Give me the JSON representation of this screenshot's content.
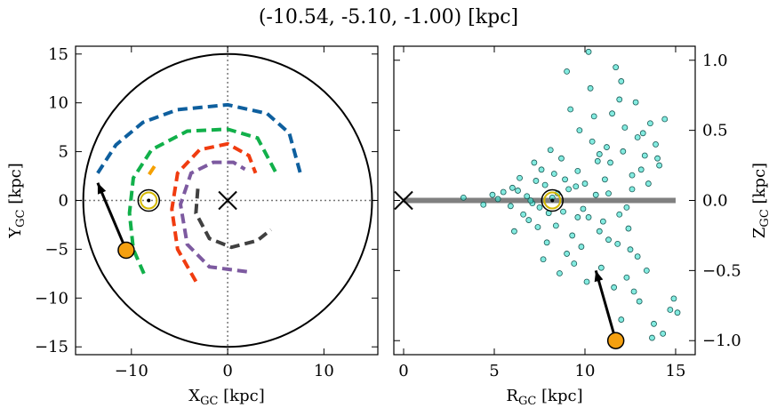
{
  "title": "(-10.54, -5.10, -1.00) [kpc]",
  "chart_data": [
    {
      "type": "line",
      "x_label": {
        "main": "X",
        "sub": "GC",
        "unit": " [kpc]"
      },
      "y_label": {
        "main": "Y",
        "sub": "GC",
        "unit": " [kpc]"
      },
      "xlim": [
        -15.8,
        15.6
      ],
      "ylim": [
        -15.8,
        15.8
      ],
      "xticks": [
        {
          "value": -10,
          "label": "−10"
        },
        0,
        10
      ],
      "yticks": [
        {
          "value": -15,
          "label": "−15"
        },
        {
          "value": -10,
          "label": "−10"
        },
        {
          "value": -5,
          "label": "−5"
        },
        0,
        5,
        10,
        15
      ],
      "boundary_radius": 15,
      "series": [
        {
          "color": "#0e5f9e",
          "x": [
            -13.5,
            -11.6,
            -8.8,
            -5.2,
            0,
            4.1,
            6.4,
            7.6
          ],
          "y": [
            2.8,
            5.7,
            8.0,
            9.3,
            9.8,
            8.9,
            6.9,
            2.6
          ]
        },
        {
          "color": "#11b04a",
          "x": [
            -8.7,
            -9.8,
            -10.2,
            -9.8,
            -7.9,
            -4.2,
            0,
            3.1,
            5.2
          ],
          "y": [
            -7.5,
            -5.0,
            -1.3,
            2.3,
            5.2,
            7.1,
            7.3,
            6.4,
            2.5
          ]
        },
        {
          "color": "#f03c10",
          "x": [
            -3.3,
            -5.2,
            -5.8,
            -5.2,
            -2.9,
            0,
            2.2,
            2.9
          ],
          "y": [
            -8.3,
            -5.0,
            -0.9,
            2.8,
            5.2,
            5.8,
            4.6,
            2.8
          ]
        },
        {
          "color": "#7d5aa0",
          "x": [
            2.0,
            -1.9,
            -4.2,
            -4.9,
            -3.8,
            -1.5,
            0.6,
            1.8
          ],
          "y": [
            -7.3,
            -6.8,
            -4.5,
            -0.4,
            2.8,
            3.9,
            3.9,
            3.2
          ]
        },
        {
          "color": "#404040",
          "x": [
            -3.1,
            -3.3,
            -1.9,
            0.4,
            3.1,
            4.5
          ],
          "y": [
            1.2,
            -1.3,
            -3.9,
            -4.8,
            -4.1,
            -3.0
          ]
        },
        {
          "color": "#f5a000",
          "x": [
            -7.6,
            -8.4
          ],
          "y": [
            3.5,
            2.3
          ]
        }
      ],
      "sun": {
        "x": -8.2,
        "y": 0
      },
      "center": {
        "x": 0,
        "y": 0
      },
      "star": {
        "x": -10.54,
        "y": -5.1,
        "color": "#f5a010"
      },
      "arrow_to": {
        "x": -13.5,
        "y": 1.8
      }
    },
    {
      "type": "scatter",
      "x_label": {
        "main": "R",
        "sub": "GC",
        "unit": " [kpc]"
      },
      "y_label": {
        "main": "Z",
        "sub": "GC",
        "unit": " [kpc]"
      },
      "yaxis_side": "right",
      "xlim": [
        -0.54,
        16.08
      ],
      "ylim": [
        -1.1,
        1.1
      ],
      "xticks": [
        0,
        5,
        10,
        15
      ],
      "yticks": [
        {
          "value": -1,
          "label": "−1.0"
        },
        {
          "value": -0.5,
          "label": "−0.5"
        },
        {
          "value": 0,
          "label": "0.0"
        },
        {
          "value": 0.5,
          "label": "0.5"
        },
        {
          "value": 1,
          "label": "1.0"
        }
      ],
      "disk": {
        "x": [
          0,
          15
        ],
        "y": [
          0,
          0
        ],
        "color": "#808080"
      },
      "series": [
        {
          "color": "#40e0d0",
          "x": [
            8.2,
            7.5,
            9.1,
            6.8,
            10.2,
            8.9,
            7.1,
            9.6,
            11.3,
            5.9,
            8.4,
            7.8,
            10.7,
            9.3,
            6.3,
            12.1,
            8.0,
            7.3,
            9.9,
            11.8,
            6.6,
            10.4,
            8.7,
            5.2,
            12.6,
            9.0,
            7.6,
            11.0,
            13.2,
            8.5,
            6.0,
            10.0,
            9.4,
            7.0,
            12.9,
            4.4,
            8.1,
            11.5,
            10.8,
            13.6,
            6.9,
            9.7,
            7.9,
            12.3,
            5.5,
            14.1,
            8.8,
            10.6,
            11.9,
            3.3,
            9.2,
            7.4,
            13.0,
            12.0,
            10.9,
            8.3,
            6.4,
            11.2,
            9.8,
            14.4,
            12.4,
            10.3,
            11.6,
            13.3,
            9.5,
            7.7,
            12.8,
            13.8,
            11.4,
            10.1,
            14.7,
            12.2,
            9.0,
            8.6,
            15.1,
            11.7,
            13.5,
            12.5,
            10.5,
            13.9,
            12.7,
            11.1,
            14.3,
            10.2,
            11.9,
            13.1,
            12.0,
            14.9,
            12.6,
            13.4,
            9.6,
            11.3,
            12.9,
            14.0,
            7.2,
            6.1,
            4.9,
            10.8,
            12.3,
            13.7
          ],
          "y": [
            0.02,
            -0.05,
            0.08,
            0.03,
            -0.12,
            0.15,
            -0.02,
            0.21,
            0.05,
            -0.04,
            -0.18,
            0.11,
            0.28,
            -0.25,
            0.07,
            0.35,
            -0.09,
            0.14,
            -0.06,
            -0.31,
            -0.1,
            0.42,
            0.3,
            0.01,
            0.18,
            -0.38,
            0.22,
            -0.15,
            0.48,
            0.05,
            0.09,
            0.12,
            -0.45,
            0,
            -0.4,
            -0.03,
            0.36,
            0.62,
            -0.22,
            0.55,
            -0.14,
            0.5,
            -0.3,
            -0.55,
            0.06,
            0.25,
            -0.08,
            0.04,
            0.72,
            0.02,
            0.65,
            -0.19,
            -0.72,
            0.85,
            -0.48,
            0.19,
            0.16,
            0.38,
            -0.33,
            0.58,
            -0.2,
            0.8,
            -0.62,
            0.32,
            0.1,
            -0.42,
            0.7,
            -0.88,
            0.27,
            -0.58,
            -0.78,
            0.52,
            0.92,
            -0.52,
            -0.8,
            0.95,
            0.12,
            -0.35,
            0.6,
            0.4,
            -0.65,
            0.15,
            -0.95,
            1.06,
            -0.1,
            0.22,
            -0.85,
            -0.7,
            0.08,
            -0.5,
            -0.12,
            -0.28,
            0.45,
            0.3,
            0.27,
            -0.22,
            0.04,
            0.33,
            -0.05,
            -0.98
          ]
        }
      ],
      "sun": {
        "x": 8.2,
        "y": 0
      },
      "center": {
        "x": 0,
        "y": 0
      },
      "star": {
        "x": 11.7,
        "y": -1.0,
        "color": "#f5a010"
      },
      "arrow_to": {
        "x": 10.6,
        "y": -0.5
      }
    }
  ]
}
